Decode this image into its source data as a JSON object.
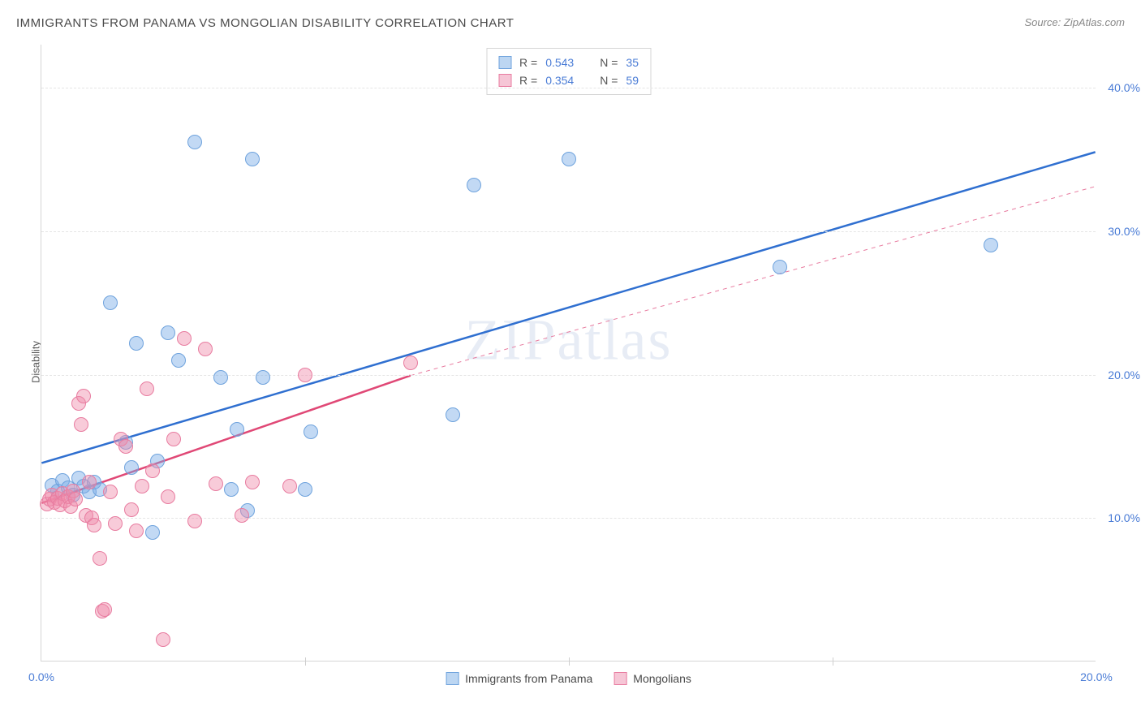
{
  "title": "IMMIGRANTS FROM PANAMA VS MONGOLIAN DISABILITY CORRELATION CHART",
  "source": "Source: ZipAtlas.com",
  "watermark": "ZIPatlas",
  "y_axis_title": "Disability",
  "chart": {
    "type": "scatter",
    "background_color": "#ffffff",
    "grid_color": "#e5e5e5",
    "axis_color": "#d5d5d5",
    "tick_label_color": "#4a7cd6",
    "axis_title_color": "#5a5a5a",
    "xlim": [
      0,
      20
    ],
    "ylim": [
      0,
      43
    ],
    "x_ticks": [
      {
        "value": 0,
        "label": "0.0%"
      },
      {
        "value": 20,
        "label": "20.0%"
      }
    ],
    "y_ticks": [
      {
        "value": 10,
        "label": "10.0%"
      },
      {
        "value": 20,
        "label": "20.0%"
      },
      {
        "value": 30,
        "label": "30.0%"
      },
      {
        "value": 40,
        "label": "40.0%"
      }
    ],
    "x_gridlines_minor": [
      5,
      10,
      15
    ],
    "point_radius": 9,
    "point_border_width": 1.5,
    "series": [
      {
        "key": "panama",
        "label": "Immigrants from Panama",
        "fill_color": "rgba(120,170,230,0.45)",
        "stroke_color": "#6fa3dd",
        "swatch_fill": "#bcd6f2",
        "swatch_border": "#6fa3dd",
        "R": "0.543",
        "N": "35",
        "trend": {
          "x1": 0,
          "y1": 13.8,
          "x2": 20,
          "y2": 35.5,
          "color": "#2f6fd0",
          "width": 2.5,
          "dash": "none"
        },
        "points": [
          [
            0.2,
            12.3
          ],
          [
            0.3,
            11.9
          ],
          [
            0.4,
            12.6
          ],
          [
            0.5,
            12.1
          ],
          [
            0.6,
            11.6
          ],
          [
            0.7,
            12.8
          ],
          [
            0.8,
            12.2
          ],
          [
            0.9,
            11.8
          ],
          [
            1.0,
            12.5
          ],
          [
            1.1,
            12.0
          ],
          [
            1.3,
            25.0
          ],
          [
            1.6,
            15.3
          ],
          [
            1.7,
            13.5
          ],
          [
            1.8,
            22.2
          ],
          [
            2.1,
            9.0
          ],
          [
            2.2,
            14.0
          ],
          [
            2.4,
            22.9
          ],
          [
            2.6,
            21.0
          ],
          [
            2.9,
            36.2
          ],
          [
            3.4,
            19.8
          ],
          [
            3.6,
            12.0
          ],
          [
            3.7,
            16.2
          ],
          [
            3.9,
            10.5
          ],
          [
            4.0,
            35.0
          ],
          [
            4.2,
            19.8
          ],
          [
            5.0,
            12.0
          ],
          [
            5.1,
            16.0
          ],
          [
            7.8,
            17.2
          ],
          [
            8.2,
            33.2
          ],
          [
            10.0,
            35.0
          ],
          [
            14.0,
            27.5
          ],
          [
            18.0,
            29.0
          ]
        ]
      },
      {
        "key": "mongolians",
        "label": "Mongolians",
        "fill_color": "rgba(240,140,170,0.45)",
        "stroke_color": "#e87ca0",
        "swatch_fill": "#f6c6d6",
        "swatch_border": "#e87ca0",
        "R": "0.354",
        "N": "59",
        "trend_solid": {
          "x1": 0,
          "y1": 11.0,
          "x2": 7.0,
          "y2": 19.9,
          "color": "#e04876",
          "width": 2.5,
          "dash": "none"
        },
        "trend_dashed": {
          "x1": 7.0,
          "y1": 19.9,
          "x2": 20,
          "y2": 33.1,
          "color": "#e87ca0",
          "width": 1,
          "dash": "5,5"
        },
        "points": [
          [
            0.1,
            11.0
          ],
          [
            0.15,
            11.3
          ],
          [
            0.2,
            11.6
          ],
          [
            0.25,
            11.1
          ],
          [
            0.3,
            11.4
          ],
          [
            0.35,
            10.9
          ],
          [
            0.4,
            11.7
          ],
          [
            0.45,
            11.2
          ],
          [
            0.5,
            11.5
          ],
          [
            0.55,
            10.8
          ],
          [
            0.6,
            11.9
          ],
          [
            0.65,
            11.3
          ],
          [
            0.7,
            18.0
          ],
          [
            0.75,
            16.5
          ],
          [
            0.8,
            18.5
          ],
          [
            0.85,
            10.2
          ],
          [
            0.9,
            12.5
          ],
          [
            0.95,
            10.0
          ],
          [
            1.0,
            9.5
          ],
          [
            1.1,
            7.2
          ],
          [
            1.15,
            3.5
          ],
          [
            1.2,
            3.6
          ],
          [
            1.3,
            11.8
          ],
          [
            1.4,
            9.6
          ],
          [
            1.5,
            15.5
          ],
          [
            1.6,
            15.0
          ],
          [
            1.7,
            10.6
          ],
          [
            1.8,
            9.1
          ],
          [
            1.9,
            12.2
          ],
          [
            2.0,
            19.0
          ],
          [
            2.1,
            13.3
          ],
          [
            2.3,
            1.5
          ],
          [
            2.4,
            11.5
          ],
          [
            2.5,
            15.5
          ],
          [
            2.7,
            22.5
          ],
          [
            2.9,
            9.8
          ],
          [
            3.1,
            21.8
          ],
          [
            3.3,
            12.4
          ],
          [
            3.8,
            10.2
          ],
          [
            4.0,
            12.5
          ],
          [
            4.7,
            12.2
          ],
          [
            5.0,
            20.0
          ],
          [
            7.0,
            20.8
          ]
        ]
      }
    ],
    "legend_top": {
      "border_color": "#d5d5d5",
      "rows": [
        {
          "series": "panama",
          "r_label": "R =",
          "n_label": "N ="
        },
        {
          "series": "mongolians",
          "r_label": "R =",
          "n_label": "N ="
        }
      ]
    }
  }
}
